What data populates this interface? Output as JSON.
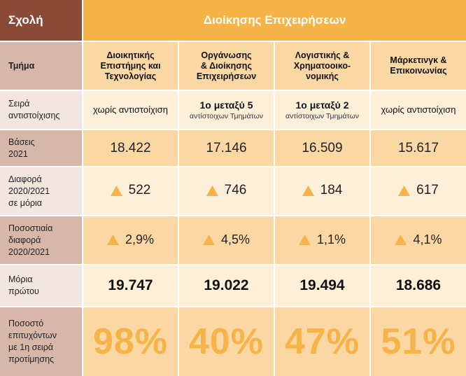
{
  "header": {
    "school_label": "Σχολή",
    "school_name": "Διοίκησης Επιχειρήσεων"
  },
  "row_labels": {
    "department": "Τμήμα",
    "order_line1": "Σειρά",
    "order_line2": "αντιστοίχισης",
    "base_line1": "Βάσεις",
    "base_line2": "2021",
    "diff_line1": "Διαφορά",
    "diff_line2": "2020/2021",
    "diff_line3": "σε μόρια",
    "pct_line1": "Ποσοστιαία",
    "pct_line2": "διαφορά",
    "pct_line3": "2020/2021",
    "first_line1": "Μόρια",
    "first_line2": "πρώτου",
    "success_line1": "Ποσοστό",
    "success_line2": "επιτυχόντων",
    "success_line3": "με 1η σειρά",
    "success_line4": "προτίμησης"
  },
  "departments": [
    {
      "name_line1": "Διοικητικής",
      "name_line2": "Επιστήμης και",
      "name_line3": "Τεχνολογίας",
      "order_main": "",
      "order_sub": "",
      "order_plain": "χωρίς αντιστοίχιση",
      "base": "18.422",
      "diff": "522",
      "pct": "2,9%",
      "first": "19.747",
      "success": "98%"
    },
    {
      "name_line1": "Οργάνωσης",
      "name_line2": "& Διοίκησης",
      "name_line3": "Επιχειρήσεων",
      "order_main": "1ο μεταξύ 5",
      "order_sub": "αντίστοιχων Τμημάτων",
      "order_plain": "",
      "base": "17.146",
      "diff": "746",
      "pct": "4,5%",
      "first": "19.022",
      "success": "40%"
    },
    {
      "name_line1": "Λογιστικής &",
      "name_line2": "Χρηματοοικο-",
      "name_line3": "νομικής",
      "order_main": "1ο μεταξύ 2",
      "order_sub": "αντίστοιχων Τμημάτων",
      "order_plain": "",
      "base": "16.509",
      "diff": "184",
      "pct": "1,1%",
      "first": "19.494",
      "success": "47%"
    },
    {
      "name_line1": "Μάρκετινγκ &",
      "name_line2": "Επικοινωνίας",
      "name_line3": "",
      "order_main": "",
      "order_sub": "",
      "order_plain": "χωρίς αντιστοίχιση",
      "base": "15.617",
      "diff": "617",
      "pct": "4,1%",
      "first": "18.686",
      "success": "51%"
    }
  ],
  "icons": {
    "increase": "triangle-up-icon"
  },
  "colors": {
    "school_label_bg": "#8b4a36",
    "school_name_bg": "#f6b347",
    "accent": "#f6b347",
    "triangle": "#f6b347"
  }
}
